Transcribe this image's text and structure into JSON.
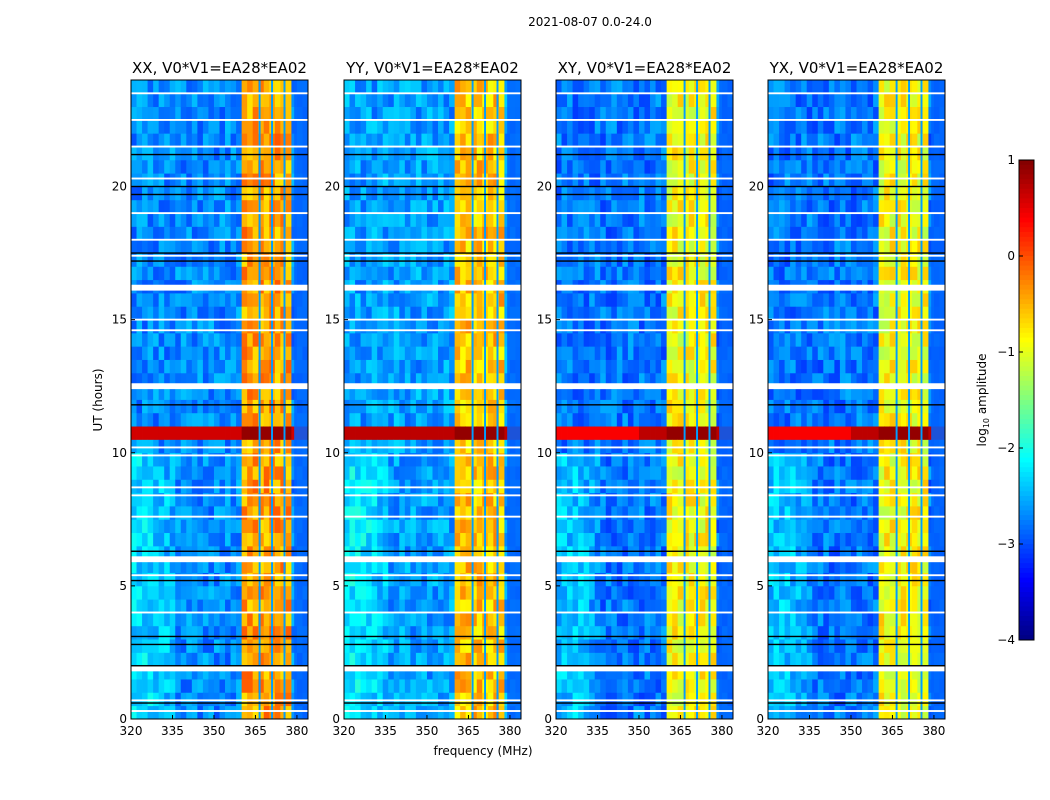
{
  "chart_data": {
    "type": "heatmap",
    "title": "2021-08-07 0.0-24.0",
    "xlabel": "frequency (MHz)",
    "ylabel": "UT (hours)",
    "xlim": [
      320,
      384
    ],
    "ylim": [
      0,
      24
    ],
    "xticks": [
      "320",
      "335",
      "350",
      "365",
      "380"
    ],
    "yticks": [
      "0",
      "5",
      "10",
      "15",
      "20"
    ],
    "panels": [
      {
        "title": "XX, V0*V1=EA28*EA02",
        "background_level": -2.7,
        "band_level": -0.4,
        "flare_level": 0.6
      },
      {
        "title": "YY, V0*V1=EA28*EA02",
        "background_level": -2.6,
        "band_level": -0.6,
        "flare_level": 0.7
      },
      {
        "title": "XY, V0*V1=EA28*EA02",
        "background_level": -2.8,
        "band_level": -0.9,
        "flare_level": 0.7
      },
      {
        "title": "YX, V0*V1=EA28*EA02",
        "background_level": -2.8,
        "band_level": -0.9,
        "flare_level": 0.7
      }
    ],
    "rfi_band_mhz": [
      360,
      379
    ],
    "notch_freqs_mhz": [
      366.5,
      371,
      375.5
    ],
    "flare_hours": [
      10.6,
      11.0
    ],
    "flagged_hours": [
      0.3,
      0.7,
      1.9,
      4.0,
      5.4,
      6.0,
      7.6,
      8.4,
      8.7,
      9.9,
      10.2,
      12.5,
      14.6,
      15.0,
      16.2,
      17.4,
      18.0,
      19.0,
      20.3,
      21.5,
      22.5,
      23.5
    ],
    "dark_line_hours": [
      0.6,
      2.0,
      2.8,
      3.1,
      5.2,
      6.3,
      11.8,
      17.2,
      17.5,
      19.7,
      20.0,
      21.2
    ],
    "colorbar": {
      "label_prefix": "log",
      "label_sub": "10",
      "label_suffix": " amplitude",
      "range": [
        -4,
        1
      ],
      "ticks": [
        "1",
        "0",
        "−1",
        "−2",
        "−3",
        "−4"
      ]
    }
  }
}
